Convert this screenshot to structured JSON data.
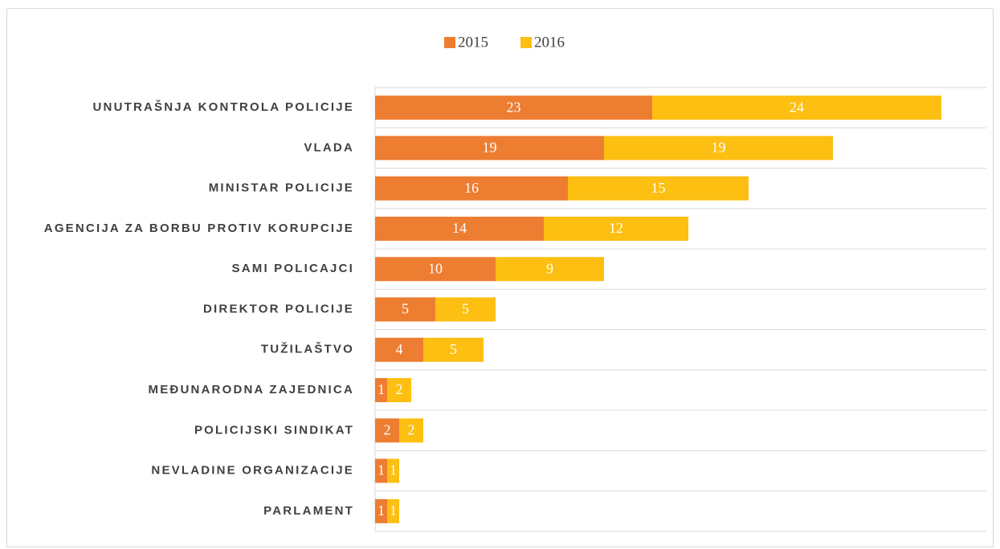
{
  "chart_data": {
    "type": "stacked_barh",
    "categories": [
      "UNUTRAŠNJA KONTROLA POLICIJE",
      "VLADA",
      "MINISTAR POLICIJE",
      "AGENCIJA ZA BORBU PROTIV KORUPCIJE",
      "SAMI POLICAJCI",
      "DIREKTOR POLICIJE",
      "TUŽILAŠTVO",
      "MEĐUNARODNA ZAJEDNICA",
      "POLICIJSKI SINDIKAT",
      "NEVLADINE ORGANIZACIJE",
      "PARLAMENT"
    ],
    "series": [
      {
        "name": "2015",
        "color": "#ed7d31",
        "values": [
          23,
          19,
          16,
          14,
          10,
          5,
          4,
          1,
          2,
          1,
          1
        ]
      },
      {
        "name": "2016",
        "color": "#fcbf12",
        "values": [
          24,
          19,
          15,
          12,
          9,
          5,
          5,
          2,
          2,
          1,
          1
        ]
      }
    ],
    "legend": "top",
    "grid": true
  }
}
